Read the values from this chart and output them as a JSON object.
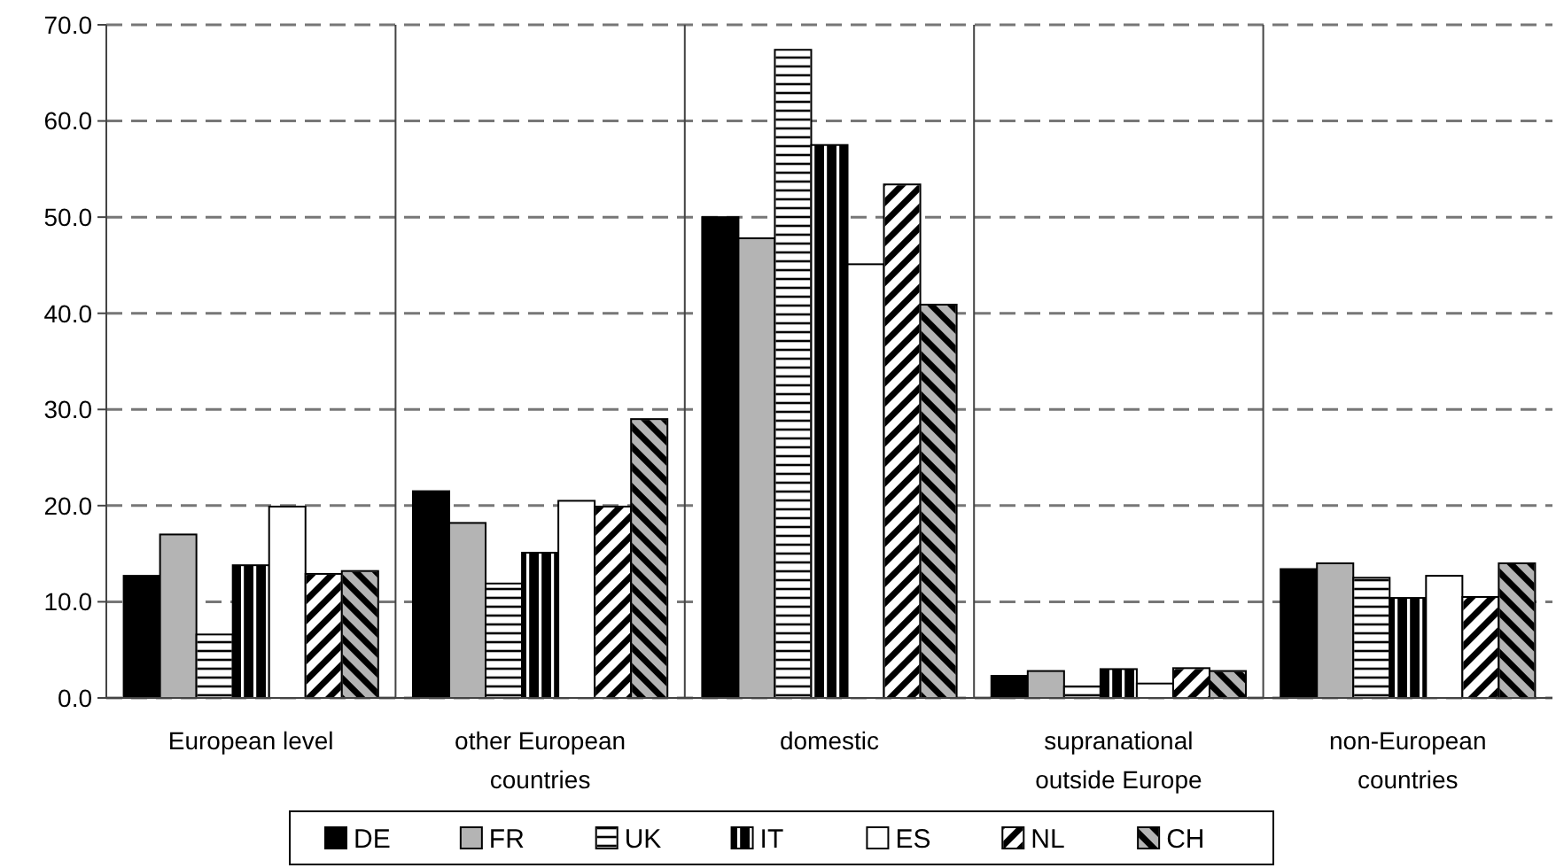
{
  "chart_data": {
    "type": "bar",
    "categories": [
      "European level",
      "other European countries",
      "domestic",
      "supranational outside Europe",
      "non-European countries"
    ],
    "series": [
      {
        "name": "DE",
        "color": "#000000",
        "values": [
          12.7,
          21.5,
          50.0,
          2.3,
          13.4
        ]
      },
      {
        "name": "FR",
        "color": "#b4b4b4",
        "values": [
          17.0,
          18.2,
          47.8,
          2.8,
          14.0
        ]
      },
      {
        "name": "UK",
        "color": "#ffffff",
        "values": [
          6.6,
          11.9,
          67.4,
          1.2,
          12.5
        ]
      },
      {
        "name": "IT",
        "color": "#000000",
        "values": [
          13.8,
          15.1,
          57.5,
          3.0,
          10.4
        ]
      },
      {
        "name": "ES",
        "color": "#ffffff",
        "values": [
          19.9,
          20.5,
          45.1,
          1.5,
          12.7
        ]
      },
      {
        "name": "NL",
        "color": "#ffffff",
        "values": [
          12.9,
          19.9,
          53.4,
          3.1,
          10.5
        ]
      },
      {
        "name": "CH",
        "color": "#b4b4b4",
        "values": [
          13.2,
          29.0,
          40.9,
          2.8,
          14.0
        ]
      }
    ],
    "ylim": [
      0,
      70
    ],
    "yticks": [
      {
        "value": 0,
        "label": "0.0"
      },
      {
        "value": 10,
        "label": "10.0"
      },
      {
        "value": 20,
        "label": "20.0"
      },
      {
        "value": 30,
        "label": "30.0"
      },
      {
        "value": 40,
        "label": "40.0"
      },
      {
        "value": 50,
        "label": "50.0"
      },
      {
        "value": 60,
        "label": "60.0"
      },
      {
        "value": 70,
        "label": "70.0"
      }
    ],
    "grid": "y",
    "legend": "bottom"
  }
}
